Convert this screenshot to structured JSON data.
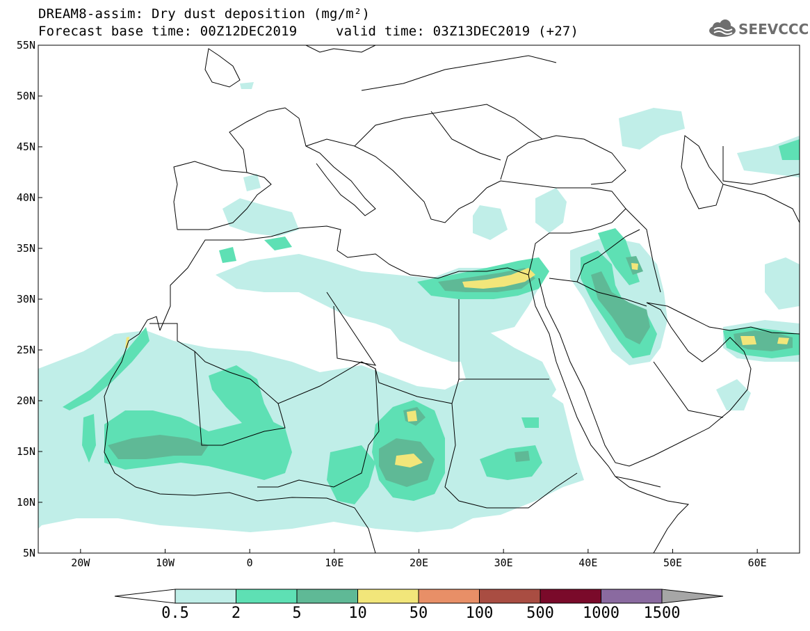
{
  "header": {
    "title": "DREAM8-assim: Dry dust deposition (mg/m²)",
    "base_time": "Forecast base time: 00Z12DEC2019",
    "valid_time": "valid time: 03Z13DEC2019 (+27)"
  },
  "logo": {
    "text": "SEEVCCC",
    "icon": "cloud-icon"
  },
  "map": {
    "region": {
      "lon_min": -25,
      "lon_max": 65,
      "lat_min": 5,
      "lat_max": 55
    },
    "lon_ticks": [
      {
        "value": -20,
        "label": "20W"
      },
      {
        "value": -10,
        "label": "10W"
      },
      {
        "value": 0,
        "label": "0"
      },
      {
        "value": 10,
        "label": "10E"
      },
      {
        "value": 20,
        "label": "20E"
      },
      {
        "value": 30,
        "label": "30E"
      },
      {
        "value": 40,
        "label": "40E"
      },
      {
        "value": 50,
        "label": "50E"
      },
      {
        "value": 60,
        "label": "60E"
      }
    ],
    "lat_ticks": [
      {
        "value": 55,
        "label": "55N"
      },
      {
        "value": 50,
        "label": "50N"
      },
      {
        "value": 45,
        "label": "45N"
      },
      {
        "value": 40,
        "label": "40N"
      },
      {
        "value": 35,
        "label": "35N"
      },
      {
        "value": 30,
        "label": "30N"
      },
      {
        "value": 25,
        "label": "25N"
      },
      {
        "value": 20,
        "label": "20N"
      },
      {
        "value": 15,
        "label": "15N"
      },
      {
        "value": 10,
        "label": "10N"
      },
      {
        "value": 5,
        "label": "5N"
      }
    ]
  },
  "legend": {
    "labels": [
      "0.5",
      "2",
      "5",
      "10",
      "50",
      "100",
      "500",
      "1000",
      "1500"
    ],
    "under_color": "#ffffff",
    "over_color": "#a6a6a6",
    "colors": [
      "#c0eee8",
      "#5ee0b4",
      "#5fb996",
      "#f2e67a",
      "#e88f67",
      "#a94d42",
      "#7a0a2a",
      "#8a6aa0"
    ]
  },
  "colors": {
    "level1": "#c0eee8",
    "level2": "#5ee0b4",
    "level3": "#5fb996",
    "level4": "#f2e67a",
    "coast": "#000000",
    "logo": "#6e6e6e"
  }
}
